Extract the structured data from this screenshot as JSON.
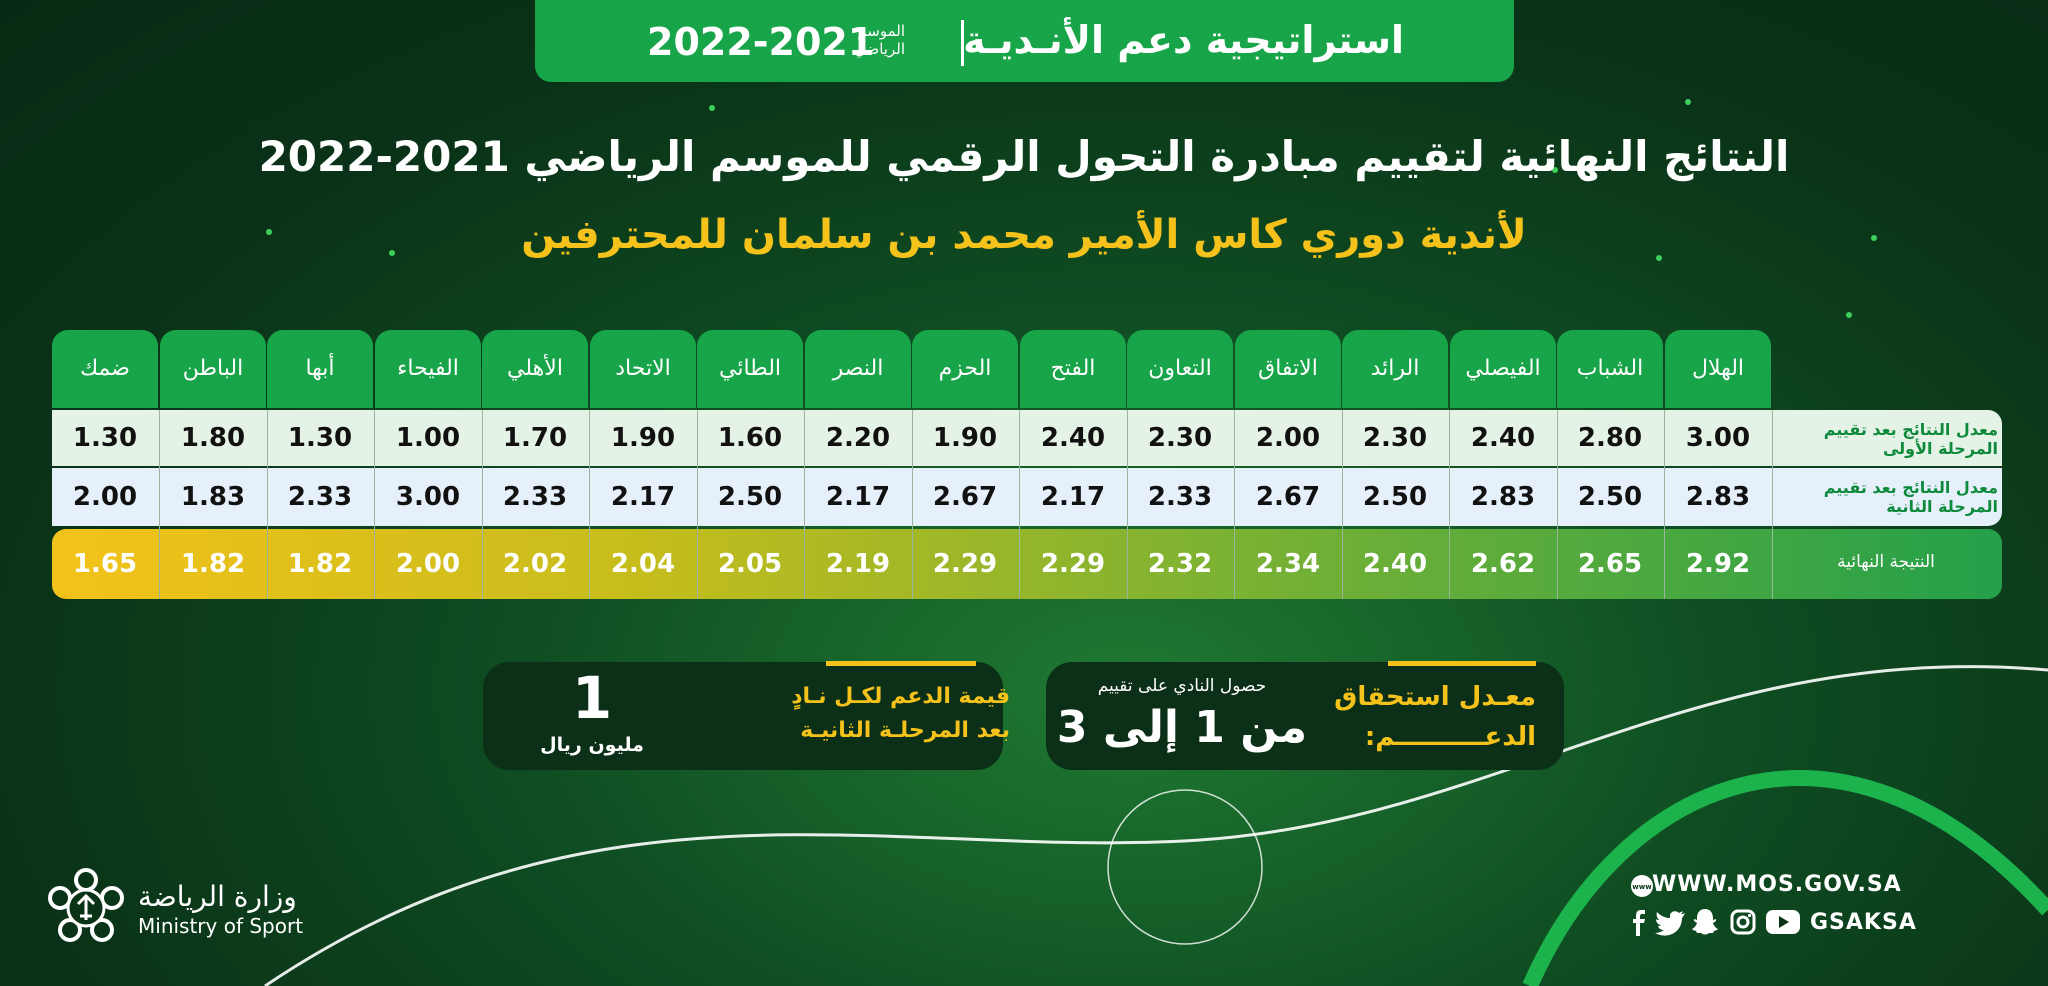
{
  "banner": {
    "strategy": "استراتيجية دعم الأنـديـة",
    "season_label": "الموسم الرياضي",
    "season": "2022-2021"
  },
  "title": "النتائج النهائية لتقييم مبادرة التحول الرقمي للموسم الرياضي 2021-2022",
  "subtitle": "لأندية دوري كاس الأمير محمد بن سلمان للمحترفين",
  "table": {
    "clubs": [
      "الهلال",
      "الشباب",
      "الفيصلي",
      "الرائد",
      "الاتفاق",
      "التعاون",
      "الفتح",
      "الحزم",
      "النصر",
      "الطائي",
      "الاتحاد",
      "الأهلي",
      "الفيحاء",
      "أبها",
      "الباطن",
      "ضمك"
    ],
    "row_labels": [
      "معدل النتائج بعد تقييم المرحلة الأولى",
      "معدل النتائج بعد تقييم المرحلة الثانية",
      "النتيجة النهائية"
    ],
    "phase1": [
      "3.00",
      "2.80",
      "2.40",
      "2.30",
      "2.00",
      "2.30",
      "2.40",
      "1.90",
      "2.20",
      "1.60",
      "1.90",
      "1.70",
      "1.00",
      "1.30",
      "1.80",
      "1.30"
    ],
    "phase2": [
      "2.83",
      "2.50",
      "2.83",
      "2.50",
      "2.67",
      "2.33",
      "2.17",
      "2.67",
      "2.17",
      "2.50",
      "2.17",
      "2.33",
      "3.00",
      "2.33",
      "1.83",
      "2.00"
    ],
    "final": [
      "2.92",
      "2.65",
      "2.62",
      "2.40",
      "2.34",
      "2.32",
      "2.29",
      "2.29",
      "2.19",
      "2.05",
      "2.04",
      "2.02",
      "2.00",
      "1.82",
      "1.82",
      "1.65"
    ]
  },
  "eligibility": {
    "label_line1": "معـدل استحقاق",
    "label_line2": "الدعــــــــــم:",
    "caption": "حصول النادي على تقييم",
    "value": "من 1 إلى 3"
  },
  "support": {
    "label_line1": "قيمة الدعم لكـل نـادٍ",
    "label_line2": "بعد المرحلـة الثانيـة",
    "amount": "1",
    "unit": "مليون ريال"
  },
  "footer": {
    "ministry_ar": "وزارة الرياضة",
    "ministry_en": "Ministry of Sport",
    "website": "WWW.MOS.GOV.SA",
    "handle": "GSAKSA"
  },
  "colors": {
    "accent_green": "#18a448",
    "gold": "#f5c21b",
    "dark_bg": "#0a3318"
  },
  "icons": [
    "www-icon",
    "facebook-icon",
    "twitter-icon",
    "snapchat-icon",
    "instagram-icon",
    "youtube-icon",
    "ministry-emblem-icon"
  ]
}
